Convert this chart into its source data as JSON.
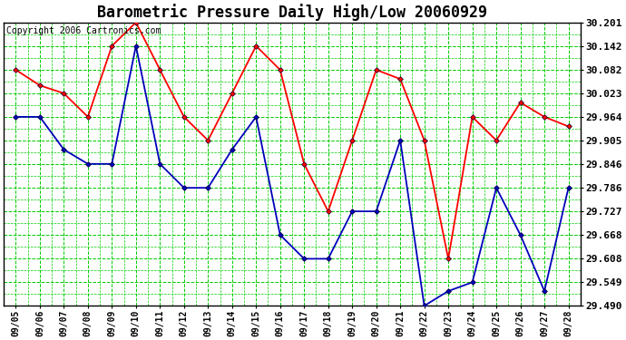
{
  "title": "Barometric Pressure Daily High/Low 20060929",
  "copyright": "Copyright 2006 Cartronics.com",
  "dates": [
    "09/05",
    "09/06",
    "09/07",
    "09/08",
    "09/09",
    "09/10",
    "09/11",
    "09/12",
    "09/13",
    "09/14",
    "09/15",
    "09/16",
    "09/17",
    "09/18",
    "09/19",
    "09/20",
    "09/21",
    "09/22",
    "09/23",
    "09/24",
    "09/25",
    "09/26",
    "09/27",
    "09/28"
  ],
  "high": [
    30.082,
    30.043,
    30.023,
    29.964,
    30.142,
    30.201,
    30.082,
    29.964,
    29.905,
    30.023,
    30.142,
    30.082,
    29.846,
    29.727,
    29.905,
    30.082,
    30.059,
    29.905,
    29.608,
    29.964,
    29.905,
    30.0,
    29.964,
    29.94
  ],
  "low": [
    29.964,
    29.964,
    29.882,
    29.846,
    29.846,
    30.142,
    29.846,
    29.786,
    29.786,
    29.882,
    29.964,
    29.668,
    29.608,
    29.608,
    29.727,
    29.727,
    29.905,
    29.49,
    29.527,
    29.549,
    29.786,
    29.668,
    29.527,
    29.786
  ],
  "high_color": "#ff0000",
  "low_color": "#0000bb",
  "marker_dot_color": "#000033",
  "grid_color": "#00cc00",
  "grid_minor_color": "#00cc00",
  "bg_color": "#ffffff",
  "plot_bg_color": "#ffffff",
  "title_fontsize": 12,
  "copyright_fontsize": 7,
  "ymin": 29.49,
  "ymax": 30.201,
  "yticks": [
    30.201,
    30.142,
    30.082,
    30.023,
    29.964,
    29.905,
    29.846,
    29.786,
    29.727,
    29.668,
    29.608,
    29.549,
    29.49
  ],
  "line_width": 1.3,
  "marker_size": 3
}
